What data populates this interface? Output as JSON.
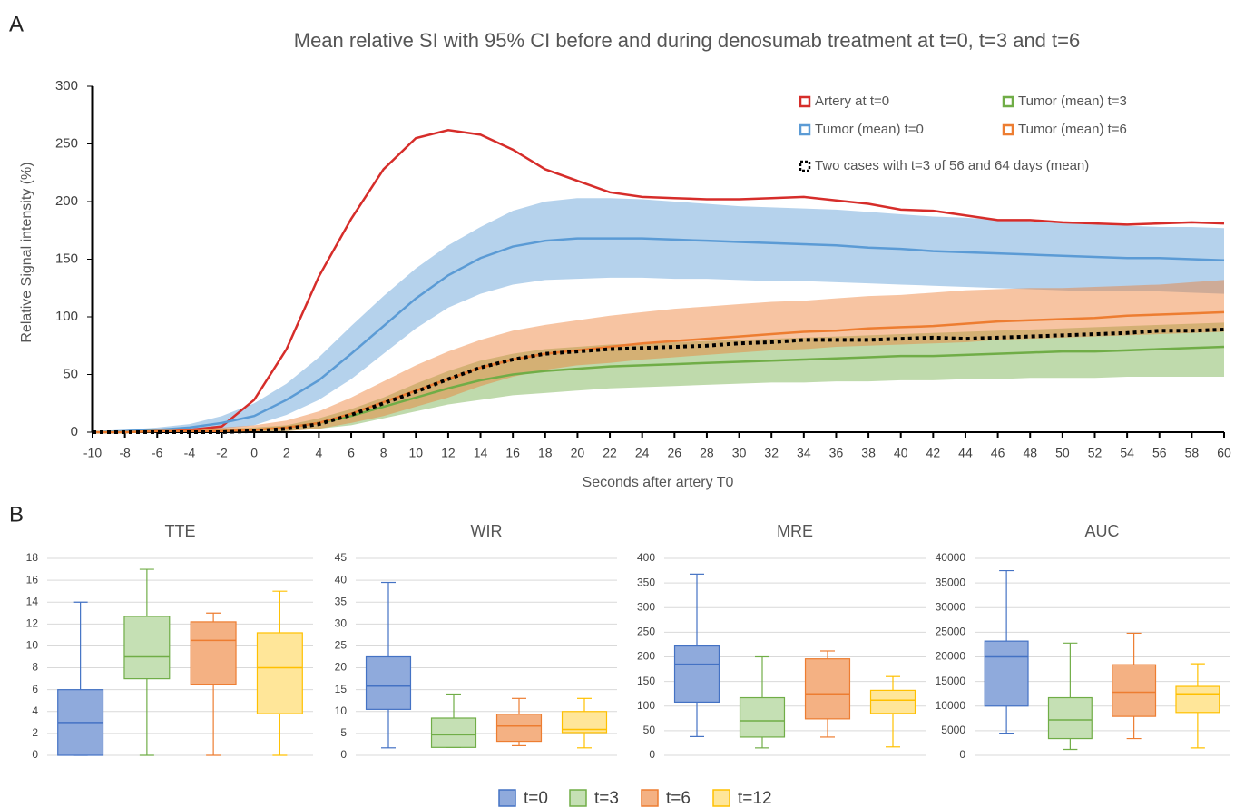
{
  "panel_labels": [
    "A",
    "B"
  ],
  "chart_data": [
    {
      "type": "line",
      "title": "Mean relative SI with 95% CI before and during denosumab treatment at t=0, t=3 and t=6",
      "x_label": "Seconds after artery T0",
      "y_label": "Relative Signal intensity (%)",
      "x": [
        -10,
        -8,
        -6,
        -4,
        -2,
        0,
        2,
        4,
        6,
        8,
        10,
        12,
        14,
        16,
        18,
        20,
        22,
        24,
        26,
        28,
        30,
        32,
        34,
        36,
        38,
        40,
        42,
        44,
        46,
        48,
        50,
        52,
        54,
        56,
        58,
        60
      ],
      "xlim": [
        -10,
        60
      ],
      "xticks": [
        -10,
        -8,
        -6,
        -4,
        -2,
        0,
        2,
        4,
        6,
        8,
        10,
        12,
        14,
        16,
        18,
        20,
        22,
        24,
        26,
        28,
        30,
        32,
        34,
        36,
        38,
        40,
        42,
        44,
        46,
        48,
        50,
        52,
        54,
        56,
        58,
        60
      ],
      "ylim": [
        0,
        300
      ],
      "yticks": [
        0,
        50,
        100,
        150,
        200,
        250,
        300
      ],
      "series": [
        {
          "name": "Artery at t=0",
          "color": "#d62d2a",
          "values": [
            0,
            0,
            1,
            2,
            5,
            28,
            72,
            135,
            185,
            228,
            255,
            262,
            258,
            245,
            228,
            218,
            208,
            204,
            203,
            202,
            202,
            203,
            204,
            201,
            198,
            193,
            192,
            188,
            184,
            184,
            182,
            181,
            180,
            181,
            182,
            181
          ]
        },
        {
          "name": "Tumor (mean) t=0",
          "color": "#5b9bd5",
          "values": [
            0,
            1,
            2,
            4,
            8,
            14,
            28,
            45,
            68,
            92,
            116,
            136,
            151,
            161,
            166,
            168,
            168,
            168,
            167,
            166,
            165,
            164,
            163,
            162,
            160,
            159,
            157,
            156,
            155,
            154,
            153,
            152,
            151,
            151,
            150,
            149
          ],
          "upper": [
            1,
            2,
            4,
            7,
            14,
            25,
            42,
            65,
            92,
            118,
            142,
            162,
            178,
            192,
            200,
            203,
            203,
            202,
            200,
            198,
            196,
            195,
            194,
            193,
            191,
            189,
            187,
            186,
            184,
            183,
            181,
            180,
            179,
            178,
            178,
            177
          ],
          "lower": [
            0,
            0,
            1,
            2,
            3,
            6,
            15,
            28,
            46,
            68,
            90,
            108,
            120,
            128,
            132,
            133,
            134,
            134,
            133,
            133,
            132,
            131,
            131,
            130,
            129,
            128,
            127,
            126,
            125,
            124,
            123,
            122,
            122,
            122,
            121,
            120
          ]
        },
        {
          "name": "Tumor (mean) t=3",
          "color": "#70ad47",
          "values": [
            0,
            0,
            1,
            1,
            1,
            2,
            4,
            8,
            14,
            22,
            30,
            38,
            45,
            50,
            53,
            55,
            57,
            58,
            59,
            60,
            61,
            62,
            63,
            64,
            65,
            66,
            66,
            67,
            68,
            69,
            70,
            70,
            71,
            72,
            73,
            74
          ],
          "upper": [
            0,
            1,
            2,
            2,
            3,
            4,
            6,
            12,
            20,
            30,
            42,
            53,
            62,
            68,
            72,
            74,
            76,
            77,
            78,
            79,
            80,
            81,
            82,
            83,
            84,
            85,
            86,
            87,
            88,
            89,
            90,
            91,
            92,
            93,
            94,
            95
          ],
          "lower": [
            0,
            0,
            0,
            0,
            0,
            0,
            1,
            3,
            6,
            12,
            18,
            24,
            28,
            32,
            34,
            36,
            38,
            39,
            40,
            41,
            42,
            43,
            43,
            44,
            44,
            45,
            45,
            46,
            46,
            47,
            47,
            47,
            48,
            48,
            48,
            48
          ]
        },
        {
          "name": "Tumor (mean) t=6",
          "color": "#ed7d31",
          "values": [
            0,
            0,
            1,
            1,
            1,
            2,
            4,
            8,
            16,
            26,
            36,
            46,
            56,
            63,
            68,
            71,
            74,
            77,
            79,
            81,
            83,
            85,
            87,
            88,
            90,
            91,
            92,
            94,
            96,
            97,
            98,
            99,
            101,
            102,
            103,
            104
          ],
          "upper": [
            0,
            1,
            2,
            3,
            4,
            6,
            10,
            18,
            30,
            44,
            58,
            70,
            80,
            88,
            93,
            97,
            101,
            104,
            107,
            109,
            111,
            113,
            114,
            116,
            118,
            119,
            121,
            123,
            124,
            125,
            125,
            126,
            127,
            128,
            130,
            132
          ],
          "lower": [
            0,
            0,
            0,
            0,
            0,
            0,
            1,
            3,
            8,
            14,
            22,
            30,
            40,
            48,
            54,
            58,
            60,
            63,
            65,
            67,
            69,
            71,
            72,
            74,
            75,
            76,
            77,
            78,
            80,
            81,
            82,
            83,
            84,
            85,
            86,
            87
          ]
        },
        {
          "name": "Two cases with t=3 of 56 and 64 days (mean)",
          "color": "#000000",
          "style": "dotted",
          "values": [
            0,
            0,
            0,
            0,
            0,
            1,
            3,
            7,
            15,
            25,
            35,
            46,
            56,
            63,
            68,
            70,
            72,
            73,
            74,
            75,
            77,
            78,
            80,
            80,
            80,
            81,
            82,
            81,
            82,
            83,
            84,
            85,
            86,
            88,
            88,
            89
          ]
        }
      ]
    },
    {
      "type": "box",
      "categories": [
        "t=0",
        "t=3",
        "t=6",
        "t=12"
      ],
      "colors": [
        "#8faadc",
        "#c5e0b4",
        "#f4b183",
        "#ffe699"
      ],
      "edge_colors": [
        "#4472c4",
        "#70ad47",
        "#ed7d31",
        "#ffc000"
      ],
      "grid": true,
      "charts": [
        {
          "title": "TTE",
          "ylim": [
            0,
            18
          ],
          "yticks": [
            0,
            2,
            4,
            6,
            8,
            10,
            12,
            14,
            16,
            18
          ],
          "min": [
            0,
            0,
            0,
            0
          ],
          "q1": [
            0,
            7,
            6.5,
            3.8
          ],
          "median": [
            3,
            9,
            10.5,
            8
          ],
          "q3": [
            6,
            12.7,
            12.2,
            11.2
          ],
          "max": [
            14,
            17,
            13,
            15
          ]
        },
        {
          "title": "WIR",
          "ylim": [
            0,
            45
          ],
          "yticks": [
            0,
            5,
            10,
            15,
            20,
            25,
            30,
            35,
            40,
            45
          ],
          "min": [
            1.7,
            1.8,
            2.2,
            1.7
          ],
          "q1": [
            10.5,
            1.8,
            3.2,
            5.2
          ],
          "median": [
            15.8,
            4.7,
            6.7,
            5.9
          ],
          "q3": [
            22.5,
            8.5,
            9.4,
            10
          ],
          "max": [
            39.5,
            14,
            13,
            13
          ]
        },
        {
          "title": "MRE",
          "ylim": [
            0,
            400
          ],
          "yticks": [
            0,
            50,
            100,
            150,
            200,
            250,
            300,
            350,
            400
          ],
          "min": [
            38,
            15,
            37,
            17
          ],
          "q1": [
            108,
            37,
            74,
            85
          ],
          "median": [
            185,
            70,
            125,
            112
          ],
          "q3": [
            222,
            117,
            196,
            132
          ],
          "max": [
            368,
            200,
            212,
            160
          ]
        },
        {
          "title": "AUC",
          "ylim": [
            0,
            40000
          ],
          "yticks": [
            0,
            5000,
            10000,
            15000,
            20000,
            25000,
            30000,
            35000,
            40000
          ],
          "min": [
            4500,
            1200,
            3400,
            1500
          ],
          "q1": [
            10000,
            3400,
            7900,
            8700
          ],
          "median": [
            20000,
            7200,
            12800,
            12500
          ],
          "q3": [
            23200,
            11700,
            18400,
            14000
          ],
          "max": [
            37500,
            22800,
            24800,
            18600
          ]
        }
      ]
    }
  ]
}
